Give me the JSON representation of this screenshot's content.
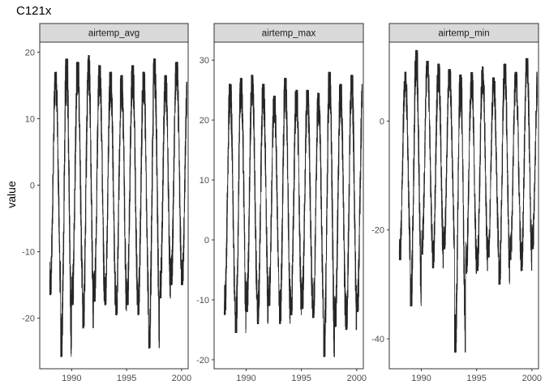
{
  "title": "C121x",
  "y_axis_title": "value",
  "colors": {
    "line": "#262626",
    "strip_fill": "#d9d9d9",
    "panel_border": "#333333",
    "tick_text": "#4d4d4d"
  },
  "chart_data": {
    "type": "line",
    "facet": "wrap",
    "scales": "free_y",
    "ylabel": "value",
    "title": "C121x",
    "xlim": [
      1987.1,
      2000.6
    ],
    "x_ticks": [
      1990,
      1995,
      2000
    ],
    "grid": false,
    "panels": [
      {
        "name": "airtemp_avg",
        "ylim": [
          -27.6,
          21.5
        ],
        "y_ticks": [
          -20,
          -10,
          0,
          10,
          20
        ],
        "season": {
          "start": 1988.0,
          "end": 2000.5,
          "mean": -1,
          "amplitude": 14,
          "peaks": [
            17,
            19,
            18.5,
            19.5,
            18,
            17,
            16.5,
            18,
            17,
            19,
            16.5,
            18.5,
            15.5
          ],
          "troughs": [
            -16.5,
            -25.8,
            -18,
            -21.5,
            -17.5,
            -18,
            -19.5,
            -18,
            -19.5,
            -24.5,
            -17,
            -15,
            -15
          ]
        }
      },
      {
        "name": "airtemp_max",
        "ylim": [
          -21.5,
          33
        ],
        "y_ticks": [
          -20,
          -10,
          0,
          10,
          20,
          30
        ],
        "season": {
          "start": 1988.0,
          "end": 2000.5,
          "mean": 5,
          "amplitude": 17,
          "peaks": [
            26,
            27,
            27.5,
            26,
            24,
            27,
            25,
            25,
            24.5,
            28,
            26,
            27.5,
            26
          ],
          "troughs": [
            -12.5,
            -15.5,
            -12,
            -14,
            -11,
            -14,
            -12.5,
            -11.5,
            -13,
            -19.5,
            -14.5,
            -15,
            -12
          ]
        }
      },
      {
        "name": "airtemp_min",
        "ylim": [
          -45.5,
          14.5
        ],
        "y_ticks": [
          -40,
          -20,
          0
        ],
        "season": {
          "start": 1988.0,
          "end": 2000.5,
          "mean": -8,
          "amplitude": 14,
          "peaks": [
            9,
            13,
            11,
            10.5,
            9.5,
            8.5,
            9,
            10,
            8,
            10.5,
            9,
            11.5,
            9
          ],
          "troughs": [
            -25.5,
            -34,
            -24.5,
            -27,
            -23.5,
            -42.5,
            -28,
            -27.5,
            -25,
            -30,
            -25.5,
            -27.5,
            -23.5
          ]
        }
      }
    ]
  }
}
